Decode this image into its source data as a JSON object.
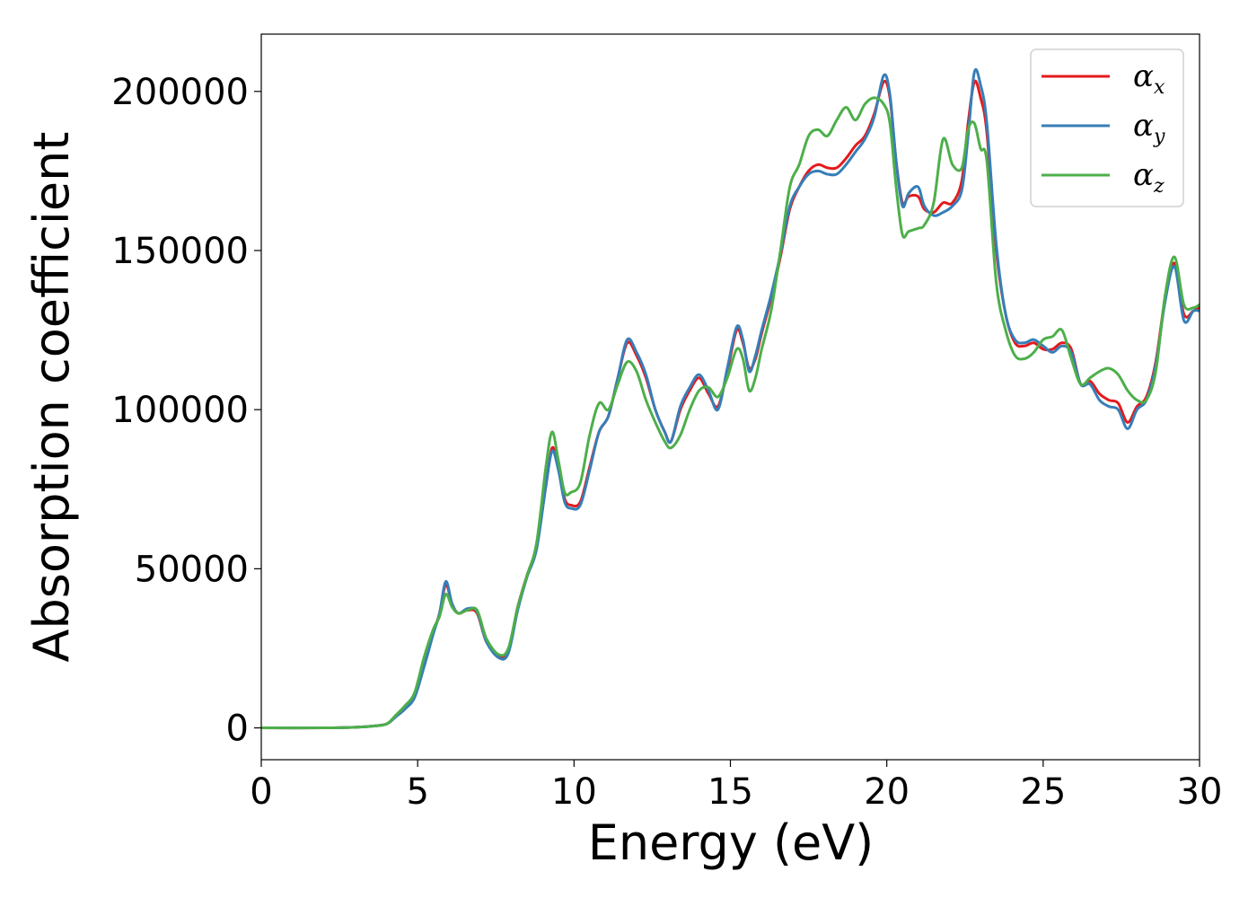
{
  "chart_data": {
    "type": "line",
    "title": "",
    "xlabel": "Energy (eV)",
    "ylabel": "Absorption coefficient",
    "xlim": [
      0,
      30
    ],
    "ylim": [
      -10000,
      218000
    ],
    "xticks": [
      0,
      5,
      10,
      15,
      20,
      25,
      30
    ],
    "yticks": [
      0,
      50000,
      100000,
      150000,
      200000
    ],
    "grid": false,
    "legend_position": "top-right",
    "series": [
      {
        "name": "α",
        "sub": "x",
        "color": "#e41a1c",
        "x": [
          0,
          2,
          3,
          3.5,
          4,
          4.3,
          4.6,
          4.9,
          5.2,
          5.5,
          5.7,
          5.9,
          6.1,
          6.3,
          6.6,
          6.9,
          7.2,
          7.6,
          7.9,
          8.2,
          8.5,
          8.8,
          9.1,
          9.3,
          9.5,
          9.7,
          9.9,
          10.2,
          10.5,
          10.8,
          11.1,
          11.4,
          11.7,
          12,
          12.3,
          12.6,
          12.9,
          13.1,
          13.4,
          13.7,
          14,
          14.3,
          14.6,
          14.9,
          15.2,
          15.4,
          15.6,
          15.8,
          16,
          16.3,
          16.6,
          16.9,
          17.2,
          17.5,
          17.8,
          18.1,
          18.4,
          18.7,
          19,
          19.3,
          19.6,
          19.9,
          20.1,
          20.3,
          20.5,
          20.7,
          21,
          21.2,
          21.5,
          21.8,
          22.1,
          22.4,
          22.6,
          22.8,
          23,
          23.2,
          23.5,
          23.8,
          24.1,
          24.4,
          24.7,
          25,
          25.3,
          25.6,
          25.9,
          26.2,
          26.5,
          26.8,
          27.1,
          27.4,
          27.7,
          28,
          28.3,
          28.6,
          28.9,
          29.2,
          29.5,
          29.8,
          30
        ],
        "values": [
          0,
          0,
          200,
          500,
          1200,
          3500,
          6000,
          10000,
          20000,
          30000,
          36000,
          45000,
          39000,
          36000,
          37000,
          36000,
          27000,
          22500,
          24000,
          38000,
          48000,
          57000,
          76000,
          88000,
          82000,
          72000,
          70000,
          71000,
          82000,
          93000,
          98000,
          110000,
          121000,
          117000,
          110000,
          100000,
          93000,
          90000,
          100000,
          106000,
          110000,
          105000,
          101000,
          112000,
          125000,
          121000,
          113000,
          116000,
          124000,
          135000,
          148000,
          163000,
          170000,
          175000,
          177000,
          176000,
          176000,
          179000,
          183000,
          186000,
          193000,
          203000,
          198000,
          178000,
          165000,
          167000,
          167000,
          163000,
          162000,
          165000,
          165000,
          172000,
          190000,
          203000,
          198000,
          187000,
          150000,
          130000,
          121000,
          120000,
          121000,
          119000,
          119000,
          121000,
          119000,
          108000,
          109000,
          105000,
          103000,
          102000,
          96000,
          101000,
          104000,
          115000,
          135000,
          146000,
          130000,
          131000,
          132000
        ]
      },
      {
        "name": "α",
        "sub": "y",
        "color": "#377eb8",
        "x": [
          0,
          2,
          3,
          3.5,
          4,
          4.3,
          4.6,
          4.9,
          5.2,
          5.5,
          5.7,
          5.9,
          6.1,
          6.3,
          6.6,
          6.9,
          7.2,
          7.6,
          7.9,
          8.2,
          8.5,
          8.8,
          9.1,
          9.3,
          9.5,
          9.7,
          9.9,
          10.2,
          10.5,
          10.8,
          11.1,
          11.4,
          11.7,
          12,
          12.3,
          12.6,
          12.9,
          13.1,
          13.4,
          13.7,
          14,
          14.3,
          14.6,
          14.9,
          15.2,
          15.4,
          15.6,
          15.8,
          16,
          16.3,
          16.6,
          16.9,
          17.2,
          17.5,
          17.8,
          18.1,
          18.4,
          18.7,
          19,
          19.3,
          19.6,
          19.9,
          20.1,
          20.3,
          20.5,
          20.7,
          21,
          21.2,
          21.5,
          21.8,
          22.1,
          22.4,
          22.6,
          22.8,
          23,
          23.2,
          23.5,
          23.8,
          24.1,
          24.4,
          24.7,
          25,
          25.3,
          25.6,
          25.9,
          26.2,
          26.5,
          26.8,
          27.1,
          27.4,
          27.7,
          28,
          28.3,
          28.6,
          28.9,
          29.2,
          29.5,
          29.8,
          30
        ],
        "values": [
          0,
          0,
          200,
          500,
          1200,
          3500,
          6000,
          9500,
          19000,
          29500,
          36000,
          46000,
          39000,
          36000,
          37500,
          36500,
          27000,
          22000,
          23500,
          37000,
          47500,
          56000,
          76000,
          87000,
          81000,
          71000,
          69000,
          70000,
          81000,
          93000,
          98000,
          110000,
          122000,
          118000,
          111000,
          100000,
          93000,
          90000,
          101000,
          107000,
          111000,
          106000,
          100000,
          113000,
          126000,
          122000,
          112000,
          117000,
          125000,
          136000,
          149000,
          164000,
          170000,
          174000,
          175000,
          174000,
          174000,
          177000,
          181000,
          185000,
          192000,
          205000,
          199000,
          178000,
          164000,
          168000,
          170000,
          164000,
          161000,
          162000,
          164000,
          169000,
          186000,
          206000,
          202000,
          190000,
          152000,
          130000,
          122000,
          121000,
          122000,
          120000,
          118000,
          120000,
          118000,
          108000,
          108000,
          103000,
          101000,
          100000,
          94000,
          100000,
          103000,
          114000,
          134000,
          145000,
          128000,
          131000,
          131000
        ]
      },
      {
        "name": "α",
        "sub": "z",
        "color": "#4daf4a",
        "x": [
          0,
          2,
          3,
          3.5,
          4,
          4.3,
          4.6,
          4.9,
          5.2,
          5.5,
          5.7,
          5.9,
          6.1,
          6.3,
          6.6,
          6.9,
          7.2,
          7.6,
          7.9,
          8.2,
          8.5,
          8.8,
          9.1,
          9.3,
          9.5,
          9.7,
          9.9,
          10.2,
          10.5,
          10.8,
          11.1,
          11.4,
          11.7,
          12,
          12.3,
          12.6,
          12.9,
          13.1,
          13.4,
          13.7,
          14,
          14.3,
          14.6,
          14.9,
          15.2,
          15.4,
          15.6,
          15.8,
          16,
          16.3,
          16.6,
          16.9,
          17.2,
          17.5,
          17.8,
          18.1,
          18.4,
          18.7,
          19,
          19.3,
          19.6,
          19.9,
          20.1,
          20.3,
          20.5,
          20.7,
          21,
          21.2,
          21.5,
          21.8,
          22.1,
          22.4,
          22.6,
          22.8,
          23,
          23.2,
          23.5,
          23.8,
          24.1,
          24.4,
          24.7,
          25,
          25.3,
          25.6,
          25.9,
          26.2,
          26.5,
          26.8,
          27.1,
          27.4,
          27.7,
          28,
          28.3,
          28.6,
          28.9,
          29.2,
          29.5,
          29.8,
          30
        ],
        "values": [
          0,
          0,
          200,
          500,
          1200,
          4000,
          7000,
          11000,
          22000,
          31000,
          35000,
          42000,
          38000,
          36000,
          37000,
          37000,
          28000,
          23000,
          25000,
          38000,
          48000,
          58000,
          82000,
          93000,
          84000,
          74000,
          74000,
          77000,
          92000,
          102000,
          100000,
          108000,
          115000,
          112000,
          103000,
          96000,
          90000,
          88000,
          92000,
          100000,
          106000,
          107000,
          104000,
          110000,
          119000,
          116000,
          106000,
          110000,
          119000,
          131000,
          150000,
          170000,
          177000,
          186000,
          188000,
          186000,
          191000,
          195000,
          191000,
          196000,
          198000,
          196000,
          190000,
          170000,
          155000,
          156000,
          157000,
          158000,
          165000,
          185000,
          177000,
          176000,
          188000,
          190000,
          182000,
          178000,
          140000,
          125000,
          117000,
          116000,
          118000,
          122000,
          123000,
          125000,
          116000,
          108000,
          110000,
          112000,
          113000,
          111000,
          106000,
          103000,
          103000,
          112000,
          136000,
          148000,
          133000,
          132000,
          133000
        ]
      }
    ]
  }
}
